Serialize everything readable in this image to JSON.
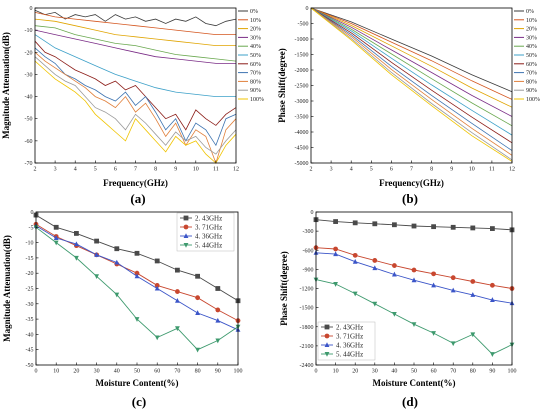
{
  "legend_series_colors": [
    "#3a3a3a",
    "#d4561f",
    "#e0a400",
    "#7a2c86",
    "#6aa84f",
    "#3ca0c8",
    "#8c1d18",
    "#3d73b0",
    "#e07f3a",
    "#9b9b9b",
    "#f0c400"
  ],
  "moisture_colors": [
    "#4a4a4a",
    "#c8472f",
    "#3b55c8",
    "#3e9a6e"
  ],
  "chart_data": [
    {
      "id": "a",
      "type": "line",
      "panel_label": "(a)",
      "xlabel": "Frequency(GHz)",
      "ylabel": "Magnitude Attenuation(dB)",
      "xlim": [
        2,
        12
      ],
      "ylim": [
        -70,
        0
      ],
      "xticks": [
        2,
        3,
        4,
        5,
        6,
        7,
        8,
        9,
        10,
        11,
        12
      ],
      "yticks": [
        0,
        -10,
        -20,
        -30,
        -40,
        -50,
        -60,
        -70
      ],
      "legend_position": "right",
      "series": [
        {
          "name": "0%",
          "x": [
            2,
            2.5,
            3,
            3.5,
            4,
            4.5,
            5,
            5.5,
            6,
            6.5,
            7,
            7.5,
            8,
            8.5,
            9,
            9.5,
            10,
            10.5,
            11,
            11.5,
            12
          ],
          "y": [
            -1,
            -3,
            -2,
            -5,
            -3,
            -4,
            -3,
            -6,
            -3,
            -5,
            -4,
            -6,
            -5,
            -7,
            -5,
            -6,
            -4,
            -7,
            -8,
            -6,
            -5
          ]
        },
        {
          "name": "10%",
          "x": [
            2,
            3,
            4,
            5,
            6,
            7,
            8,
            9,
            10,
            11,
            12
          ],
          "y": [
            -2,
            -4,
            -5,
            -6,
            -7,
            -8,
            -9,
            -10,
            -11,
            -12,
            -12
          ]
        },
        {
          "name": "20%",
          "x": [
            2,
            3,
            4,
            5,
            6,
            7,
            8,
            9,
            10,
            11,
            12
          ],
          "y": [
            -5,
            -6,
            -8,
            -10,
            -12,
            -13,
            -14,
            -15,
            -16,
            -17,
            -17
          ]
        },
        {
          "name": "30%",
          "x": [
            2,
            3,
            4,
            5,
            6,
            7,
            8,
            9,
            10,
            11,
            12
          ],
          "y": [
            -10,
            -12,
            -14,
            -16,
            -18,
            -20,
            -22,
            -23,
            -24,
            -25,
            -25
          ]
        },
        {
          "name": "40%",
          "x": [
            2,
            3,
            4,
            5,
            6,
            7,
            8,
            9,
            10,
            11,
            12
          ],
          "y": [
            -8,
            -9,
            -12,
            -14,
            -16,
            -17,
            -19,
            -21,
            -22,
            -23,
            -24
          ]
        },
        {
          "name": "50%",
          "x": [
            2,
            3,
            4,
            5,
            6,
            7,
            8,
            9,
            10,
            11,
            12
          ],
          "y": [
            -12,
            -18,
            -22,
            -26,
            -30,
            -33,
            -36,
            -38,
            -39,
            -40,
            -40
          ]
        },
        {
          "name": "60%",
          "x": [
            2,
            2.5,
            3,
            3.5,
            4,
            4.5,
            5,
            5.5,
            6,
            6.5,
            7,
            7.5,
            8,
            8.5,
            9,
            9.5,
            10,
            10.5,
            11,
            11.5,
            12
          ],
          "y": [
            -15,
            -20,
            -22,
            -25,
            -28,
            -30,
            -32,
            -35,
            -33,
            -37,
            -35,
            -40,
            -45,
            -50,
            -48,
            -55,
            -46,
            -50,
            -53,
            -48,
            -45
          ]
        },
        {
          "name": "70%",
          "x": [
            2,
            2.5,
            3,
            3.5,
            4,
            4.5,
            5,
            5.5,
            6,
            6.5,
            7,
            7.5,
            8,
            8.5,
            9,
            9.5,
            10,
            10.5,
            11,
            11.5,
            12
          ],
          "y": [
            -18,
            -22,
            -25,
            -30,
            -32,
            -35,
            -37,
            -40,
            -42,
            -38,
            -44,
            -40,
            -47,
            -55,
            -50,
            -60,
            -52,
            -55,
            -62,
            -50,
            -48
          ]
        },
        {
          "name": "80%",
          "x": [
            2,
            2.5,
            3,
            3.5,
            4,
            4.5,
            5,
            5.5,
            6,
            6.5,
            7,
            7.5,
            8,
            8.5,
            9,
            9.5,
            10,
            10.5,
            11,
            11.5,
            12
          ],
          "y": [
            -20,
            -24,
            -27,
            -30,
            -33,
            -36,
            -40,
            -42,
            -45,
            -40,
            -47,
            -43,
            -50,
            -58,
            -52,
            -62,
            -55,
            -58,
            -70,
            -55,
            -50
          ]
        },
        {
          "name": "90%",
          "x": [
            2,
            2.5,
            3,
            3.5,
            4,
            4.5,
            5,
            5.5,
            6,
            6.5,
            7,
            7.5,
            8,
            8.5,
            9,
            9.5,
            10,
            10.5,
            11,
            11.5,
            12
          ],
          "y": [
            -22,
            -26,
            -30,
            -33,
            -35,
            -40,
            -45,
            -47,
            -50,
            -55,
            -48,
            -52,
            -57,
            -62,
            -56,
            -60,
            -58,
            -63,
            -66,
            -60,
            -55
          ]
        },
        {
          "name": "100%",
          "x": [
            2,
            2.5,
            3,
            3.5,
            4,
            4.5,
            5,
            5.5,
            6,
            6.5,
            7,
            7.5,
            8,
            8.5,
            9,
            9.5,
            10,
            10.5,
            11,
            11.5,
            12
          ],
          "y": [
            -24,
            -28,
            -32,
            -35,
            -38,
            -42,
            -48,
            -52,
            -56,
            -60,
            -50,
            -55,
            -60,
            -65,
            -58,
            -62,
            -60,
            -66,
            -70,
            -62,
            -57
          ]
        }
      ]
    },
    {
      "id": "b",
      "type": "line",
      "panel_label": "(b)",
      "xlabel": "Frequency(GHz)",
      "ylabel": "Phase Shift(degree)",
      "xlim": [
        2,
        12
      ],
      "ylim": [
        -5000,
        0
      ],
      "xticks": [
        2,
        3,
        4,
        5,
        6,
        7,
        8,
        9,
        10,
        11,
        12
      ],
      "yticks": [
        0,
        -500,
        -1000,
        -1500,
        -2000,
        -2500,
        -3000,
        -3500,
        -4000,
        -4500,
        -5000
      ],
      "legend_position": "right",
      "series": [
        {
          "name": "0%",
          "x": [
            2,
            4,
            6,
            8,
            10,
            12
          ],
          "y": [
            0,
            -450,
            -1000,
            -1550,
            -2150,
            -2700
          ]
        },
        {
          "name": "10%",
          "x": [
            2,
            4,
            6,
            8,
            10,
            12
          ],
          "y": [
            0,
            -500,
            -1100,
            -1700,
            -2350,
            -2950
          ]
        },
        {
          "name": "20%",
          "x": [
            2,
            4,
            6,
            8,
            10,
            12
          ],
          "y": [
            0,
            -560,
            -1220,
            -1880,
            -2580,
            -3200
          ]
        },
        {
          "name": "30%",
          "x": [
            2,
            4,
            6,
            8,
            10,
            12
          ],
          "y": [
            0,
            -620,
            -1350,
            -2080,
            -2820,
            -3500
          ]
        },
        {
          "name": "40%",
          "x": [
            2,
            4,
            6,
            8,
            10,
            12
          ],
          "y": [
            0,
            -680,
            -1480,
            -2280,
            -3060,
            -3800
          ]
        },
        {
          "name": "50%",
          "x": [
            2,
            4,
            6,
            8,
            10,
            12
          ],
          "y": [
            0,
            -740,
            -1620,
            -2480,
            -3300,
            -4100
          ]
        },
        {
          "name": "60%",
          "x": [
            2,
            4,
            6,
            8,
            10,
            12
          ],
          "y": [
            0,
            -800,
            -1750,
            -2650,
            -3520,
            -4350
          ]
        },
        {
          "name": "70%",
          "x": [
            2,
            4,
            6,
            8,
            10,
            12
          ],
          "y": [
            0,
            -860,
            -1880,
            -2820,
            -3720,
            -4600
          ]
        },
        {
          "name": "80%",
          "x": [
            2,
            4,
            6,
            8,
            10,
            12
          ],
          "y": [
            0,
            -920,
            -1980,
            -2950,
            -3880,
            -4750
          ]
        },
        {
          "name": "90%",
          "x": [
            2,
            4,
            6,
            8,
            10,
            12
          ],
          "y": [
            0,
            -980,
            -2080,
            -3080,
            -4020,
            -4900
          ]
        },
        {
          "name": "100%",
          "x": [
            2,
            4,
            6,
            8,
            10,
            12
          ],
          "y": [
            0,
            -1030,
            -2150,
            -3150,
            -4120,
            -4950
          ]
        }
      ]
    },
    {
      "id": "c",
      "type": "line",
      "panel_label": "(c)",
      "xlabel": "Moisture Content(%)",
      "ylabel": "Magnitude Attenuation(dB)",
      "xlim": [
        0,
        100
      ],
      "ylim": [
        -50,
        0
      ],
      "xticks": [
        0,
        10,
        20,
        30,
        40,
        50,
        60,
        70,
        80,
        90,
        100
      ],
      "yticks": [
        0,
        -5,
        -10,
        -15,
        -20,
        -25,
        -30,
        -35,
        -40,
        -45,
        -50
      ],
      "legend_position": "top-right",
      "series": [
        {
          "name": "2. 43GHz",
          "marker": "square",
          "x": [
            0,
            10,
            20,
            30,
            40,
            50,
            60,
            70,
            80,
            90,
            100
          ],
          "y": [
            -1,
            -5,
            -7,
            -9.5,
            -12,
            -13.5,
            -16,
            -19,
            -21,
            -25,
            -29
          ]
        },
        {
          "name": "3. 71GHz",
          "marker": "circle",
          "x": [
            0,
            10,
            20,
            30,
            40,
            50,
            60,
            70,
            80,
            90,
            100
          ],
          "y": [
            -4,
            -8,
            -11,
            -14,
            -17,
            -20,
            -24,
            -26,
            -28,
            -32,
            -35.5
          ]
        },
        {
          "name": "4. 36GHz",
          "marker": "triangle",
          "x": [
            0,
            10,
            20,
            30,
            40,
            50,
            60,
            70,
            80,
            90,
            100
          ],
          "y": [
            -4.5,
            -8.5,
            -10.5,
            -14,
            -16.5,
            -21,
            -25,
            -29,
            -33,
            -35.5,
            -38.5
          ]
        },
        {
          "name": "5. 44GHz",
          "marker": "triangle-down",
          "x": [
            0,
            10,
            20,
            30,
            40,
            50,
            60,
            70,
            80,
            90,
            100
          ],
          "y": [
            -5,
            -10,
            -15,
            -21,
            -27,
            -35,
            -41,
            -38,
            -45,
            -42,
            -37.5
          ]
        }
      ]
    },
    {
      "id": "d",
      "type": "line",
      "panel_label": "(d)",
      "xlabel": "Moisture Content(%)",
      "ylabel": "Phase Shift(degree)",
      "xlim": [
        0,
        100
      ],
      "ylim": [
        -2400,
        0
      ],
      "xticks": [
        0,
        10,
        20,
        30,
        40,
        50,
        60,
        70,
        80,
        90,
        100
      ],
      "yticks": [
        0,
        -300,
        -600,
        -900,
        -1200,
        -1500,
        -1800,
        -2100,
        -2400
      ],
      "legend_position": "bottom-left",
      "series": [
        {
          "name": "2. 43GHz",
          "marker": "square",
          "x": [
            0,
            10,
            20,
            30,
            40,
            50,
            60,
            70,
            80,
            90,
            100
          ],
          "y": [
            -120,
            -150,
            -170,
            -185,
            -200,
            -220,
            -230,
            -240,
            -250,
            -260,
            -280
          ]
        },
        {
          "name": "3. 71GHz",
          "marker": "circle",
          "x": [
            0,
            10,
            20,
            30,
            40,
            50,
            60,
            70,
            80,
            90,
            100
          ],
          "y": [
            -560,
            -580,
            -680,
            -760,
            -840,
            -910,
            -970,
            -1030,
            -1090,
            -1150,
            -1200
          ]
        },
        {
          "name": "4. 36GHz",
          "marker": "triangle",
          "x": [
            0,
            10,
            20,
            30,
            40,
            50,
            60,
            70,
            80,
            90,
            100
          ],
          "y": [
            -640,
            -660,
            -780,
            -880,
            -980,
            -1070,
            -1150,
            -1230,
            -1300,
            -1380,
            -1430
          ]
        },
        {
          "name": "5. 44GHz",
          "marker": "triangle-down",
          "x": [
            0,
            10,
            20,
            30,
            40,
            50,
            60,
            70,
            80,
            90,
            100
          ],
          "y": [
            -1060,
            -1130,
            -1280,
            -1440,
            -1600,
            -1760,
            -1900,
            -2060,
            -1920,
            -2230,
            -2080
          ]
        }
      ]
    }
  ]
}
